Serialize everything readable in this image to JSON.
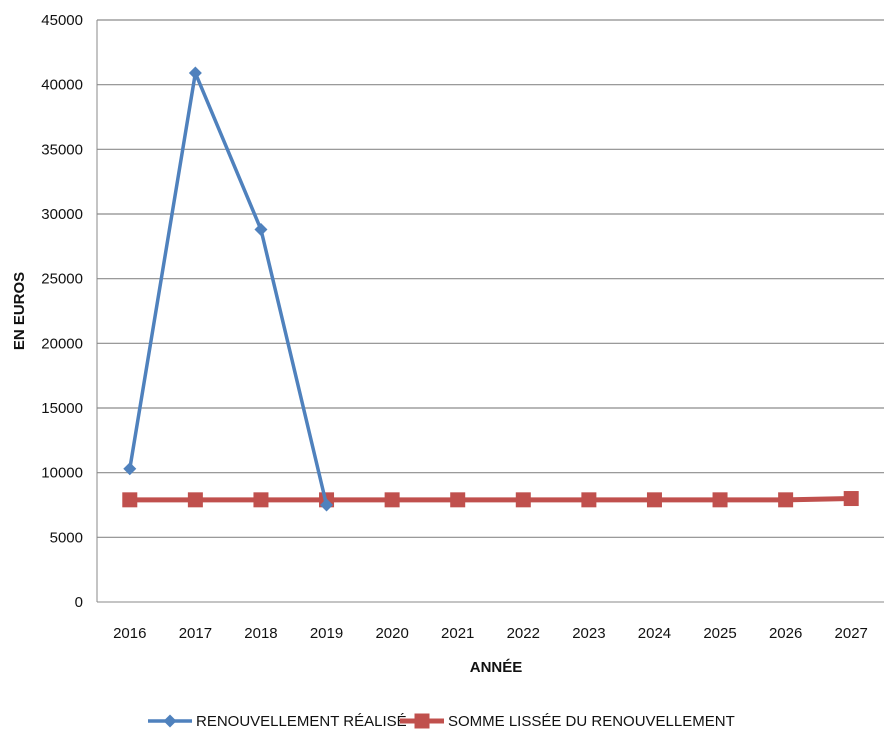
{
  "chart_data": {
    "type": "line",
    "title": "",
    "xlabel": "ANNÉE",
    "ylabel": "EN EUROS",
    "categories": [
      "2016",
      "2017",
      "2018",
      "2019",
      "2020",
      "2021",
      "2022",
      "2023",
      "2024",
      "2025",
      "2026",
      "2027"
    ],
    "ylim": [
      0,
      45000
    ],
    "yticks": [
      0,
      5000,
      10000,
      15000,
      20000,
      25000,
      30000,
      35000,
      40000,
      45000
    ],
    "grid": "horizontal",
    "legend": "bottom",
    "series": [
      {
        "name": "RENOUVELLEMENT RÉALISÉ",
        "color": "#4F81BD",
        "marker": "diamond",
        "values": [
          10300,
          40900,
          28800,
          7500,
          null,
          null,
          null,
          null,
          null,
          null,
          null,
          null
        ]
      },
      {
        "name": "SOMME LISSÉE DU RENOUVELLEMENT",
        "color": "#C0504D",
        "marker": "square",
        "values": [
          7900,
          7900,
          7900,
          7900,
          7900,
          7900,
          7900,
          7900,
          7900,
          7900,
          7900,
          8000
        ]
      }
    ]
  }
}
